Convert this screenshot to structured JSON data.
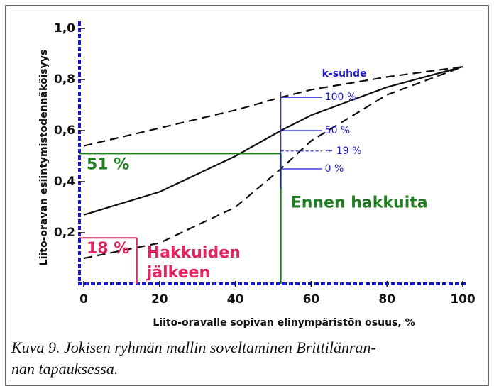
{
  "chart_data": {
    "type": "line",
    "xlabel": "Liito-oravalle sopivan elinympäristön osuus, %",
    "ylabel": "Liito-oravan esiintymistodennäköisyys",
    "x": [
      0,
      20,
      40,
      52,
      60,
      80,
      100
    ],
    "series": [
      {
        "color": "#111111",
        "dashed": true,
        "values": [
          0.54,
          0.61,
          0.68,
          0.73,
          0.76,
          0.81,
          0.85
        ]
      },
      {
        "color": "#111111",
        "dashed": false,
        "values": [
          0.27,
          0.36,
          0.5,
          0.6,
          0.66,
          0.77,
          0.85
        ]
      },
      {
        "color": "#111111",
        "dashed": true,
        "values": [
          0.1,
          0.16,
          0.3,
          0.45,
          0.56,
          0.74,
          0.85
        ]
      }
    ],
    "xlim": [
      0,
      100
    ],
    "ylim": [
      0,
      1.0
    ],
    "xticks": [
      0,
      20,
      40,
      60,
      80,
      100
    ],
    "yticks": [
      {
        "value": 0.2,
        "label": "0,2"
      },
      {
        "value": 0.4,
        "label": "0,4"
      },
      {
        "value": 0.6,
        "label": "0,6"
      },
      {
        "value": 0.8,
        "label": "0,8"
      },
      {
        "value": 1.0,
        "label": "1,0"
      }
    ],
    "reference_lines": [
      {
        "x": 14,
        "value": 0.18,
        "label": "18 %",
        "text": [
          "Hakkuiden",
          "jälkeen"
        ],
        "color": "#e0245e"
      },
      {
        "x": 52,
        "value": 0.51,
        "label": "51 %",
        "text": [
          "Ennen hakkuita"
        ],
        "color": "#1e7d1e"
      }
    ],
    "k_scale": {
      "title": "k-suhde",
      "x": 52,
      "color": "#1a1acc",
      "marks": [
        {
          "label": "100 %",
          "value": 0.73
        },
        {
          "label": "50 %",
          "value": 0.6
        },
        {
          "label": "~ 19 %",
          "value": 0.52
        },
        {
          "label": "0 %",
          "value": 0.45
        }
      ]
    }
  },
  "caption": [
    "Kuva 9. Jokisen ryhmän mallin soveltaminen Brittilänran-",
    "nan tapauksessa."
  ]
}
